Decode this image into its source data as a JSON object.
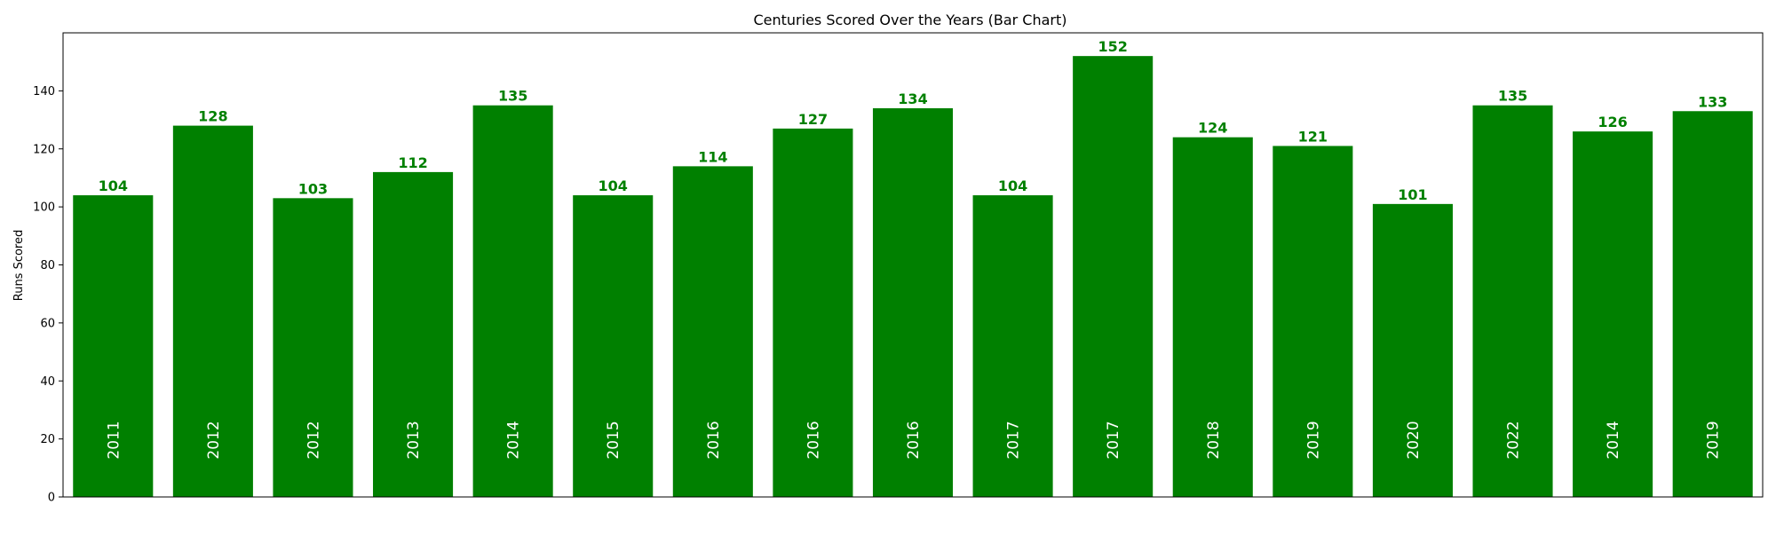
{
  "chart_data": {
    "type": "bar",
    "title": "Centuries Scored Over the Years (Bar Chart)",
    "xlabel": "",
    "ylabel": "Runs Scored",
    "categories": [
      "2011",
      "2012",
      "2012",
      "2013",
      "2014",
      "2015",
      "2016",
      "2016",
      "2016",
      "2017",
      "2017",
      "2018",
      "2019",
      "2020",
      "2022",
      "2014",
      "2019"
    ],
    "values": [
      104,
      128,
      103,
      112,
      135,
      104,
      114,
      127,
      134,
      104,
      152,
      124,
      121,
      101,
      135,
      126,
      133
    ],
    "ylim": [
      0,
      160
    ],
    "yticks": [
      "0",
      "20",
      "40",
      "60",
      "80",
      "100",
      "120",
      "140"
    ],
    "bar_color": "#008000",
    "value_label_color": "#008000",
    "category_label_color": "#ffffff",
    "grid": false,
    "legend": "none"
  }
}
